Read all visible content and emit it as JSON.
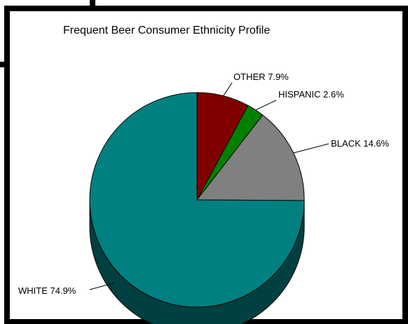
{
  "chart_data": {
    "type": "pie",
    "title": "Frequent Beer Consumer Ethnicity Profile",
    "slices": [
      {
        "label": "OTHER",
        "value": 7.9,
        "value_text": "7.9%",
        "color": "#800000",
        "side_color": "#400000"
      },
      {
        "label": "HISPANIC",
        "value": 2.6,
        "value_text": "2.6%",
        "color": "#008000",
        "side_color": "#004000"
      },
      {
        "label": "BLACK",
        "value": 14.6,
        "value_text": "14.6%",
        "color": "#808080",
        "side_color": "#404040"
      },
      {
        "label": "WHITE",
        "value": 74.9,
        "value_text": "74.9%",
        "color": "#008080",
        "side_color": "#004040"
      }
    ],
    "style": "3d-pie",
    "legend": "none",
    "labels": "outside-with-leader-lines"
  }
}
